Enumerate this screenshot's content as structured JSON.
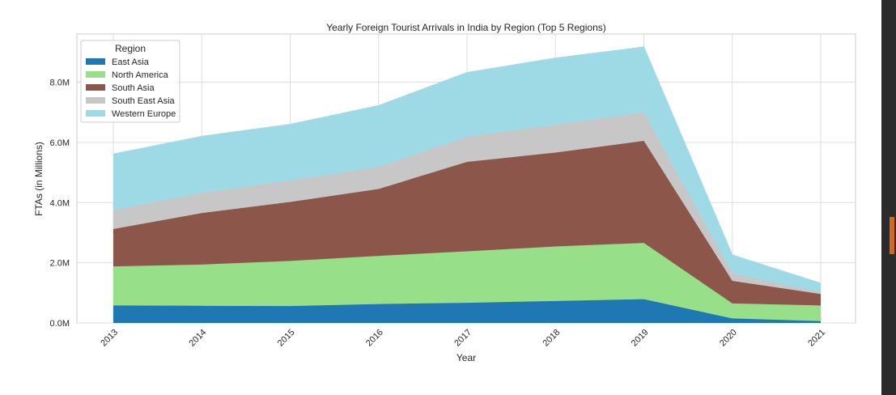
{
  "chart_data": {
    "type": "area",
    "stacked": true,
    "title": "Yearly Foreign Tourist Arrivals in India by Region (Top 5 Regions)",
    "xlabel": "Year",
    "ylabel": "FTAs (in Millions)",
    "x": [
      2013,
      2014,
      2015,
      2016,
      2017,
      2018,
      2019,
      2020,
      2021
    ],
    "ylim": [
      0,
      9.6
    ],
    "yticks": [
      0,
      2,
      4,
      6,
      8
    ],
    "ytick_labels": [
      "0.0M",
      "2.0M",
      "4.0M",
      "6.0M",
      "8.0M"
    ],
    "grid": true,
    "legend": {
      "title": "Region",
      "placement": "top-left"
    },
    "series": [
      {
        "name": "East Asia",
        "color": "#1f77b4",
        "values": [
          0.58,
          0.57,
          0.56,
          0.63,
          0.67,
          0.73,
          0.79,
          0.15,
          0.06
        ]
      },
      {
        "name": "North America",
        "color": "#98df8a",
        "values": [
          1.3,
          1.37,
          1.5,
          1.6,
          1.71,
          1.81,
          1.87,
          0.5,
          0.52
        ]
      },
      {
        "name": "South Asia",
        "color": "#8c564b",
        "values": [
          1.24,
          1.71,
          1.96,
          2.22,
          2.97,
          3.12,
          3.39,
          0.75,
          0.38
        ]
      },
      {
        "name": "South East Asia",
        "color": "#c7c7c7",
        "values": [
          0.63,
          0.67,
          0.71,
          0.74,
          0.84,
          0.92,
          0.95,
          0.25,
          0.05
        ]
      },
      {
        "name": "Western Europe",
        "color": "#9edae5",
        "values": [
          1.86,
          1.88,
          1.87,
          2.03,
          2.13,
          2.22,
          2.17,
          0.61,
          0.31
        ]
      }
    ]
  }
}
